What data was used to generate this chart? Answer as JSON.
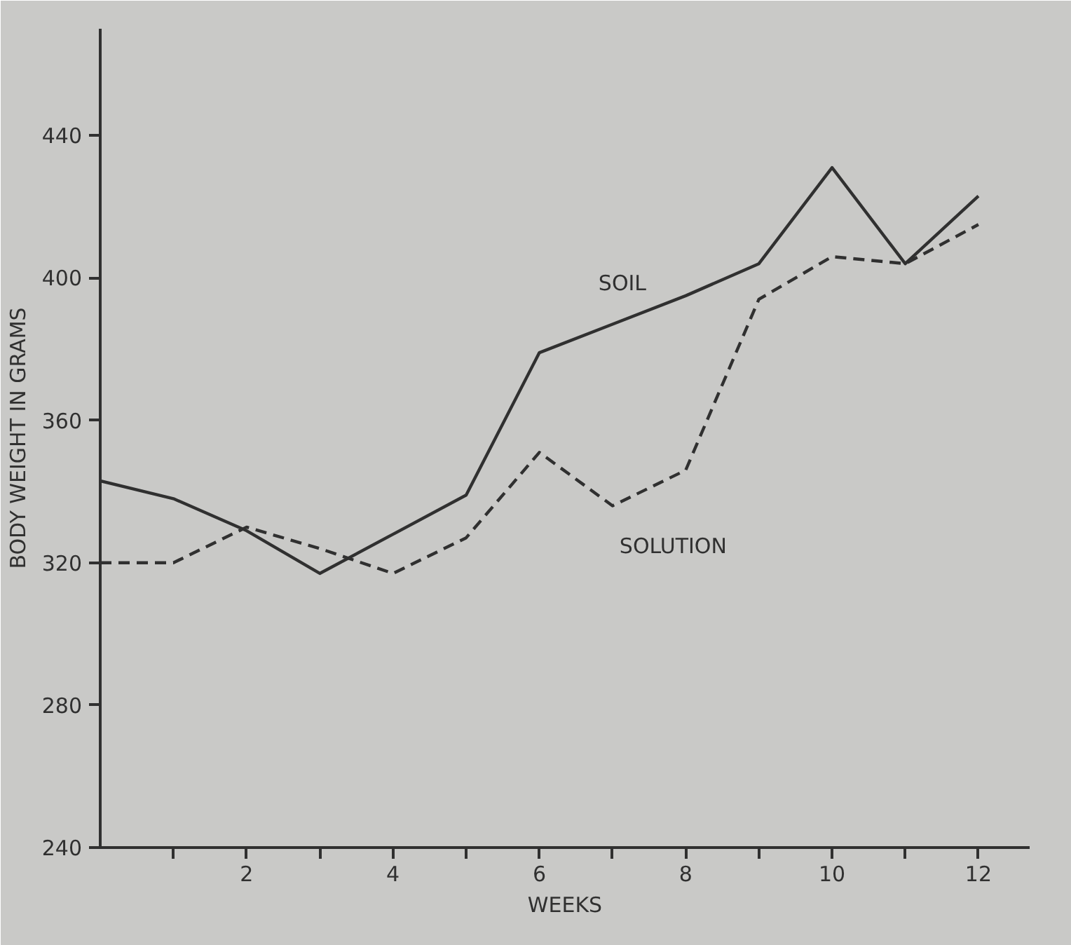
{
  "chart_data": {
    "type": "line",
    "xlabel": "WEEKS",
    "ylabel": "BODY WEIGHT IN GRAMS",
    "x": [
      0,
      1,
      2,
      3,
      4,
      5,
      6,
      7,
      8,
      9,
      10,
      11,
      12
    ],
    "series": [
      {
        "name": "SOIL",
        "color": "#303030",
        "line_style": "solid",
        "values": [
          343,
          338,
          329,
          317,
          328,
          339,
          379,
          387,
          395,
          404,
          431,
          404,
          423
        ]
      },
      {
        "name": "SOLUTION",
        "color": "#303030",
        "line_style": "dashed",
        "values": [
          320,
          320,
          330,
          324,
          317,
          327,
          351,
          336,
          346,
          394,
          406,
          404,
          415
        ]
      }
    ],
    "xlim": [
      0,
      12.7
    ],
    "ylim": [
      240,
      470
    ],
    "xticks": [
      {
        "value": 1,
        "label": null
      },
      2,
      {
        "value": 3,
        "label": null
      },
      4,
      {
        "value": 5,
        "label": null
      },
      6,
      {
        "value": 7,
        "label": null
      },
      8,
      {
        "value": 9,
        "label": null
      },
      10,
      {
        "value": 11,
        "label": null
      },
      12
    ],
    "yticks": [
      240,
      280,
      320,
      360,
      400,
      440
    ]
  }
}
